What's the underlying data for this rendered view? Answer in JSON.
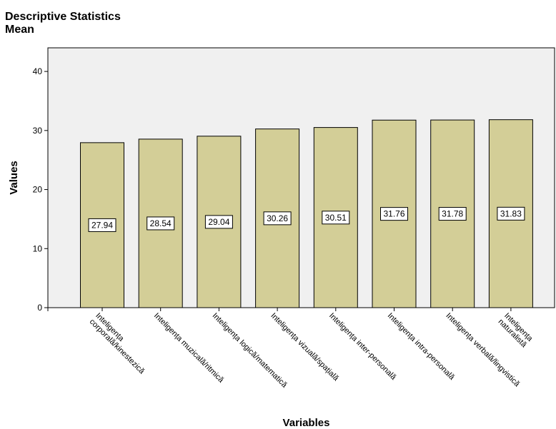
{
  "chart_data": {
    "type": "bar",
    "title": "Descriptive Statistics",
    "subtitle": "Mean",
    "xlabel": "Variables",
    "ylabel": "Values",
    "ylim": [
      0,
      44
    ],
    "yticks": [
      0,
      10,
      20,
      30,
      40
    ],
    "grid": false,
    "categories": [
      [
        "Inteligența",
        "corporală/kinestezică"
      ],
      [
        "Inteligența muzicală/ritmică"
      ],
      [
        "Inteligența logică/matematică"
      ],
      [
        "Inteligența vizuală/spațială"
      ],
      [
        "Inteligența inter-personală"
      ],
      [
        "Inteligența intra-personală"
      ],
      [
        "Inteligența verbală/lingvistică"
      ],
      [
        "Inteligența",
        "naturalistă"
      ]
    ],
    "values": [
      27.94,
      28.54,
      29.04,
      30.26,
      30.51,
      31.76,
      31.78,
      31.83
    ],
    "colors": {
      "bar_fill": "#d3ce97",
      "bar_stroke": "#000000",
      "plot_background": "#f0f0f0",
      "label_background": "#ffffff"
    }
  }
}
